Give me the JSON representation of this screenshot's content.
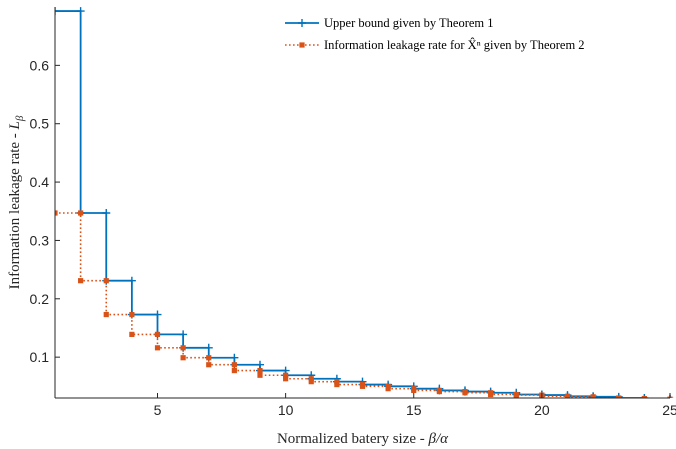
{
  "chart_data": {
    "type": "line",
    "title": "",
    "xlabel": "Normalized batery size - β/α",
    "ylabel": "Information leakage rate - L_β",
    "xlim": [
      1,
      25
    ],
    "ylim": [
      0.03,
      0.7
    ],
    "xticks": [
      5,
      10,
      15,
      20,
      25
    ],
    "yticks": [
      0.1,
      0.2,
      0.3,
      0.4,
      0.5,
      0.6
    ],
    "grid": false,
    "legend_position": "top-right",
    "step": "post",
    "series": [
      {
        "name": "Upper bound given by Theorem 1",
        "color": "#0072BD",
        "style": "solid",
        "marker": "plus",
        "x": [
          1,
          2,
          3,
          4,
          5,
          6,
          7,
          8,
          9,
          10,
          11,
          12,
          13,
          14,
          15,
          16,
          17,
          18,
          19,
          20,
          21,
          22,
          23,
          24,
          25
        ],
        "values": [
          0.693,
          0.347,
          0.231,
          0.173,
          0.139,
          0.116,
          0.099,
          0.087,
          0.077,
          0.069,
          0.063,
          0.058,
          0.053,
          0.05,
          0.046,
          0.043,
          0.041,
          0.039,
          0.036,
          0.035,
          0.033,
          0.032,
          0.03,
          0.029,
          0.028
        ]
      },
      {
        "name": "Information leakage rate for X̂ⁿ given by Theorem 2",
        "color": "#D95319",
        "style": "dotted",
        "marker": "square",
        "x": [
          1,
          2,
          3,
          4,
          5,
          6,
          7,
          8,
          9,
          10,
          11,
          12,
          13,
          14,
          15,
          16,
          17,
          18,
          19,
          20,
          21,
          22,
          23,
          24,
          25
        ],
        "values": [
          0.347,
          0.231,
          0.173,
          0.139,
          0.116,
          0.099,
          0.087,
          0.077,
          0.069,
          0.063,
          0.058,
          0.053,
          0.05,
          0.046,
          0.043,
          0.041,
          0.039,
          0.036,
          0.035,
          0.033,
          0.032,
          0.03,
          0.029,
          0.028,
          0.027
        ],
        "markers_x": [
          1,
          2,
          2,
          3,
          3,
          4,
          4,
          5,
          5,
          6,
          6,
          7,
          7,
          8,
          8,
          9,
          9,
          10,
          10,
          11,
          11,
          12,
          12,
          13,
          13,
          14,
          14,
          15,
          15,
          16,
          16,
          17,
          17,
          18,
          18,
          19,
          19,
          20,
          20,
          21,
          21,
          22,
          22,
          23,
          23,
          24,
          24,
          25,
          25
        ],
        "markers_y": [
          0.347,
          0.347,
          0.231,
          0.231,
          0.173,
          0.173,
          0.139,
          0.139,
          0.116,
          0.116,
          0.099,
          0.099,
          0.087,
          0.087,
          0.077,
          0.077,
          0.069,
          0.069,
          0.063,
          0.063,
          0.058,
          0.058,
          0.053,
          0.053,
          0.05,
          0.05,
          0.046,
          0.046,
          0.043,
          0.043,
          0.041,
          0.041,
          0.039,
          0.039,
          0.036,
          0.036,
          0.035,
          0.035,
          0.033,
          0.033,
          0.032,
          0.032,
          0.03,
          0.03,
          0.029,
          0.029,
          0.028,
          0.028,
          0.027
        ]
      }
    ]
  }
}
